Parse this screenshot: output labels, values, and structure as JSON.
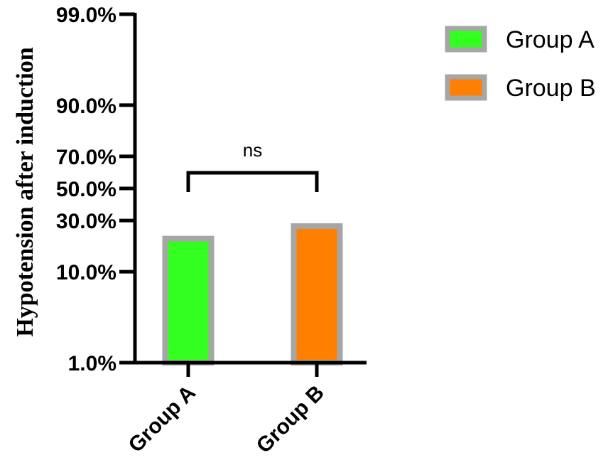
{
  "chart_data": {
    "type": "bar",
    "categories": [
      "Group A",
      "Group B"
    ],
    "series": [
      {
        "name": "Group A",
        "values": [
          21.0,
          null
        ],
        "color": "#33ff1f"
      },
      {
        "name": "Group B",
        "values": [
          null,
          27.0
        ],
        "color": "#ff7f00"
      }
    ],
    "bar_values": [
      21.0,
      27.0
    ],
    "bar_colors": [
      "#33ff1f",
      "#ff7f00"
    ],
    "bar_border_color": "#a6a6a6",
    "y_scale": "probability",
    "yticks": [
      1.0,
      10.0,
      30.0,
      50.0,
      70.0,
      90.0,
      99.0
    ],
    "ytick_labels": [
      "1.0%",
      "10.0%",
      "30.0%",
      "50.0%",
      "70.0%",
      "90.0%",
      "99.0%"
    ],
    "ylim": [
      1.0,
      99.0
    ],
    "ylabel": "Hypotension after induction",
    "xlabel": "",
    "title": "",
    "significance": {
      "between": [
        "Group A",
        "Group B"
      ],
      "label": "ns"
    },
    "legend": {
      "position": "top-right",
      "entries": [
        "Group A",
        "Group B"
      ]
    },
    "grid": false
  }
}
